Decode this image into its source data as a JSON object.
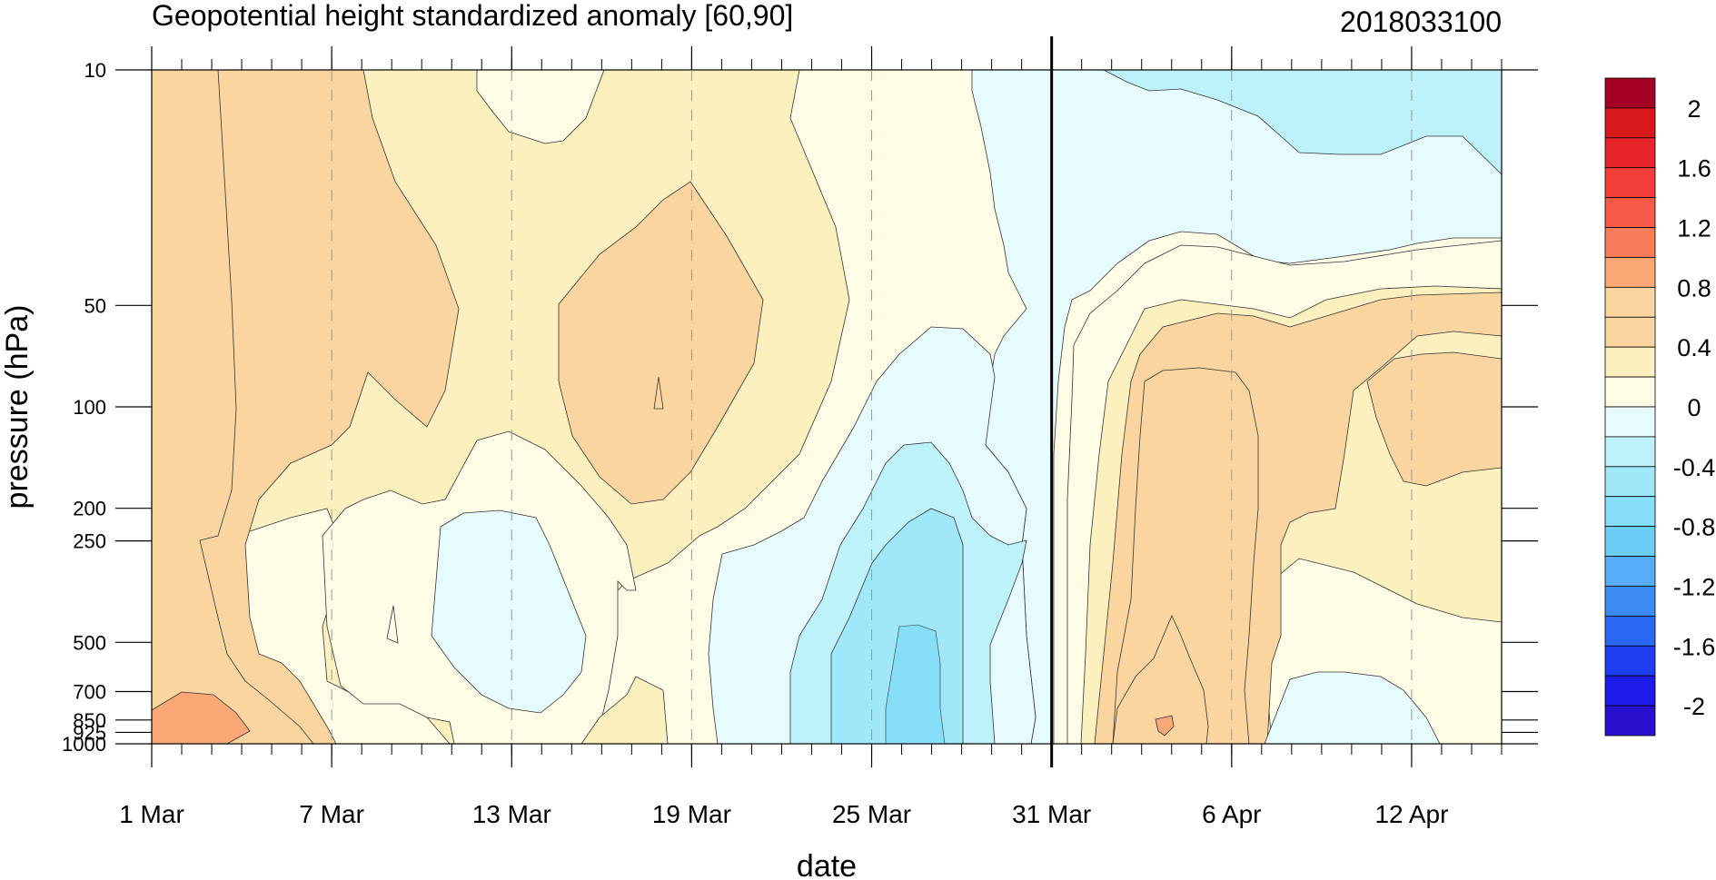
{
  "chart_data": {
    "type": "contour",
    "title": "Geopotential height standardized anomaly [60,90]",
    "timestamp": "2018033100",
    "xlabel": "date",
    "ylabel": "pressure (hPa)",
    "y_scale": "log",
    "y_reversed": true,
    "ylim": [
      1000,
      10
    ],
    "xlim": [
      "2018-03-01",
      "2018-04-15"
    ],
    "x_ticks": [
      {
        "date": "2018-03-01",
        "label": "1 Mar"
      },
      {
        "date": "2018-03-07",
        "label": "7 Mar"
      },
      {
        "date": "2018-03-13",
        "label": "13 Mar"
      },
      {
        "date": "2018-03-19",
        "label": "19 Mar"
      },
      {
        "date": "2018-03-25",
        "label": "25 Mar"
      },
      {
        "date": "2018-03-31",
        "label": "31 Mar"
      },
      {
        "date": "2018-04-06",
        "label": "6 Apr"
      },
      {
        "date": "2018-04-12",
        "label": "12 Apr"
      }
    ],
    "y_ticks": [
      {
        "value": 10,
        "label": "10"
      },
      {
        "value": 50,
        "label": "50"
      },
      {
        "value": 100,
        "label": "100"
      },
      {
        "value": 200,
        "label": "200"
      },
      {
        "value": 250,
        "label": "250"
      },
      {
        "value": 500,
        "label": "500"
      },
      {
        "value": 700,
        "label": "700"
      },
      {
        "value": 850,
        "label": "850"
      },
      {
        "value": 925,
        "label": "925"
      },
      {
        "value": 1000,
        "label": "1000"
      }
    ],
    "analysis_date": "2018-03-31",
    "contour_levels": [
      -2,
      -1.8,
      -1.6,
      -1.4,
      -1.2,
      -1,
      -0.8,
      -0.6,
      -0.4,
      -0.2,
      0,
      0.2,
      0.4,
      0.6,
      0.8,
      1,
      1.2,
      1.4,
      1.6,
      1.8,
      2
    ],
    "colorbar": {
      "labels": [
        "2",
        "1.6",
        "1.2",
        "0.8",
        "0.4",
        "0",
        "-0.4",
        "-0.8",
        "-1.2",
        "-1.6",
        "-2"
      ],
      "colors": [
        "#a50026",
        "#d7191c",
        "#e8252a",
        "#f23f3a",
        "#fa5a48",
        "#f87c5a",
        "#fca876",
        "#fbd59f",
        "#fbd59f",
        "#fdf0bf",
        "#fffce6",
        "#e6fbfd",
        "#bdf2fa",
        "#a0e8f9",
        "#86def9",
        "#6ccdf7",
        "#56acf6",
        "#3c8af4",
        "#2868f2",
        "#1e3ef0",
        "#1e1ae8",
        "#2a10cf"
      ]
    }
  }
}
